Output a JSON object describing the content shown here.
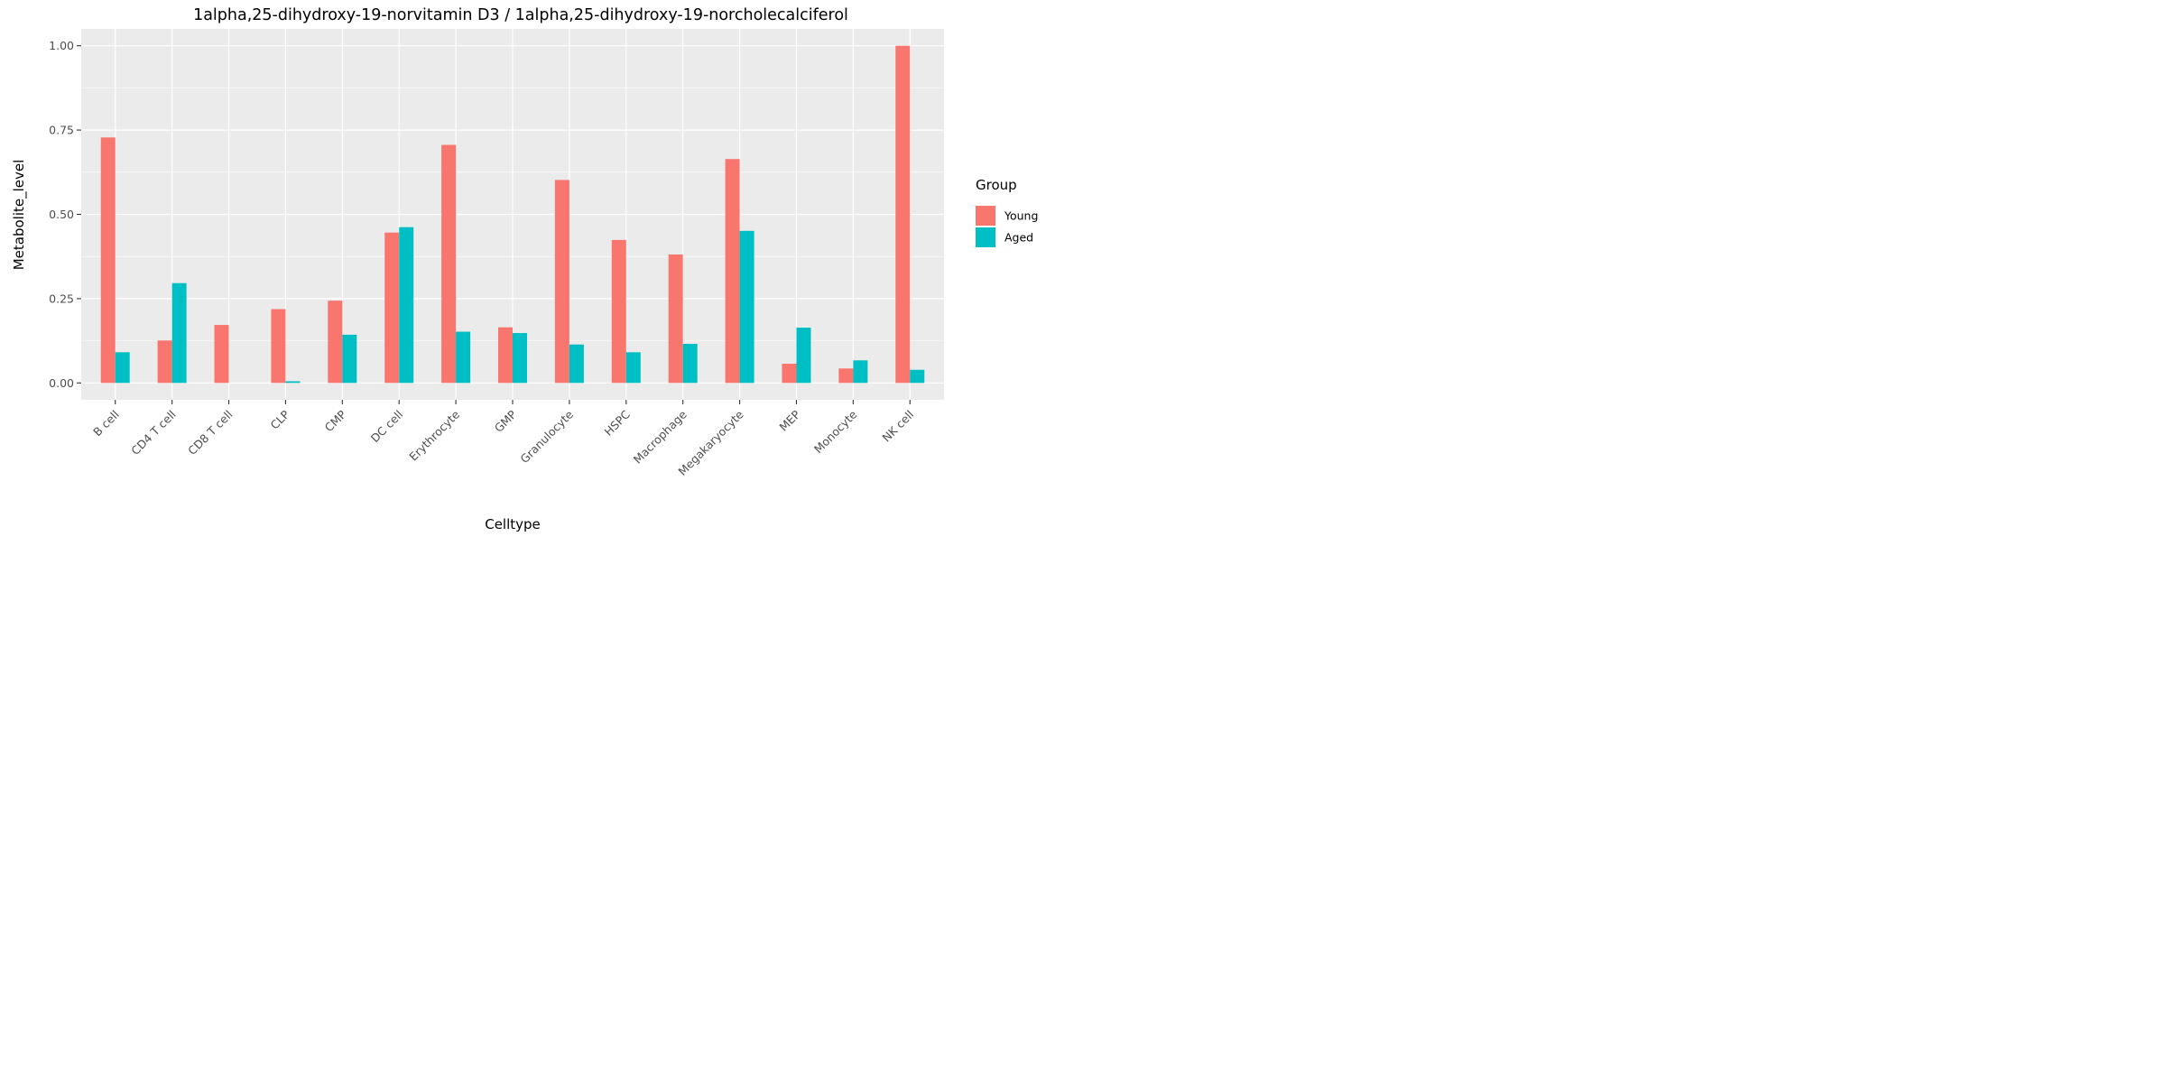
{
  "chart_data": {
    "type": "bar",
    "title": "1alpha,25-dihydroxy-19-norvitamin D3 / 1alpha,25-dihydroxy-19-norcholecalciferol",
    "xlabel": "Celltype",
    "ylabel": "Metabolite_level",
    "ylim": [
      -0.05,
      1.05
    ],
    "yticks": [
      0.0,
      0.25,
      0.5,
      0.75,
      1.0
    ],
    "ytick_labels": [
      "0.00",
      "0.25",
      "0.50",
      "0.75",
      "1.00"
    ],
    "grid": true,
    "legend_position": "right",
    "legend_title": "Group",
    "categories": [
      "B cell",
      "CD4 T cell",
      "CD8 T cell",
      "CLP",
      "CMP",
      "DC cell",
      "Erythrocyte",
      "GMP",
      "Granulocyte",
      "HSPC",
      "Macrophage",
      "Megakaryocyte",
      "MEP",
      "Monocyte",
      "NK cell"
    ],
    "series": [
      {
        "name": "Young",
        "color": "#F8766D",
        "values": [
          0.728,
          0.126,
          0.172,
          0.219,
          0.244,
          0.446,
          0.706,
          0.165,
          0.602,
          0.424,
          0.381,
          0.664,
          0.057,
          0.043,
          1.0
        ]
      },
      {
        "name": "Aged",
        "color": "#00BFC4",
        "values": [
          0.091,
          0.296,
          0.0,
          0.005,
          0.143,
          0.462,
          0.152,
          0.148,
          0.114,
          0.091,
          0.116,
          0.451,
          0.164,
          0.067,
          0.039
        ]
      }
    ]
  },
  "colors": {
    "panel_background": "#EBEBEB",
    "grid_line": "#FFFFFF",
    "tick_mark": "#333333"
  }
}
